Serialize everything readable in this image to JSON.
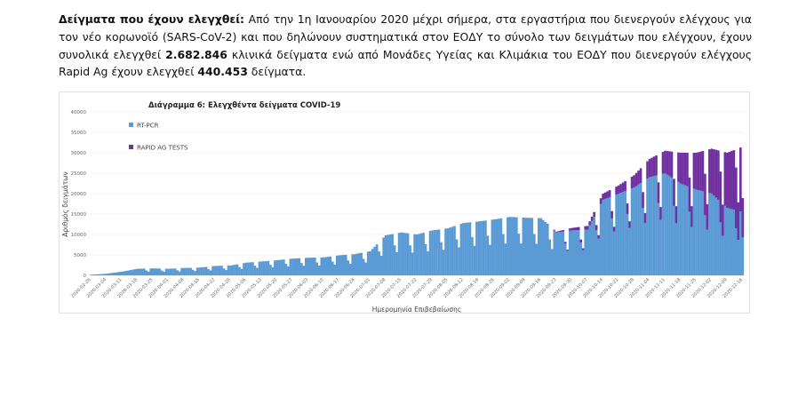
{
  "intro": {
    "heading": "Δείγματα που έχουν ελεγχθεί:",
    "text1": " Από την 1η Ιανουαρίου 2020 μέχρι σήμερα, στα εργαστήρια που διενεργούν ελέγχους για τον νέο κορωνοϊό (SARS-CoV-2) και που δηλώνουν συστηματικά στον ΕΟΔΥ το σύνολο των δειγμάτων που ελέγχουν, έχουν συνολικά ελεγχθεί ",
    "pcr_total": "2.682.846",
    "text2": " κλινικά δείγματα ενώ από Μονάδες Υγείας και Κλιμάκια του ΕΟΔΥ που διενεργούν ελέγχους Rapid Ag έχουν ελεγχθεί ",
    "rapid_total": "440.453",
    "text3": " δείγματα."
  },
  "chart_data": {
    "type": "bar",
    "stacked": true,
    "title": "Διάγραμμα 6: Ελεγχθέντα δείγματα COVID-19",
    "xlabel": "Ημερομηνία Επιβεβαίωσης",
    "ylabel": "Αριθμός δειγμάτων",
    "ylim": [
      0,
      40000
    ],
    "yticks": [
      "0",
      "5000",
      "10000",
      "15000",
      "20000",
      "25000",
      "30000",
      "35000",
      "40000"
    ],
    "x_start": "2020-02-26",
    "x_end": "2020-12-16",
    "xticks": [
      "2020-02-26",
      "2020-03-04",
      "2020-03-11",
      "2020-03-18",
      "2020-03-25",
      "2020-04-01",
      "2020-04-08",
      "2020-04-15",
      "2020-04-22",
      "2020-04-29",
      "2020-05-06",
      "2020-05-13",
      "2020-05-20",
      "2020-05-27",
      "2020-06-03",
      "2020-06-10",
      "2020-06-17",
      "2020-06-24",
      "2020-07-01",
      "2020-07-08",
      "2020-07-15",
      "2020-07-22",
      "2020-07-29",
      "2020-08-05",
      "2020-08-12",
      "2020-08-19",
      "2020-08-26",
      "2020-09-02",
      "2020-09-09",
      "2020-09-16",
      "2020-09-23",
      "2020-09-30",
      "2020-10-07",
      "2020-10-14",
      "2020-10-21",
      "2020-10-28",
      "2020-11-04",
      "2020-11-11",
      "2020-11-18",
      "2020-11-25",
      "2020-12-02",
      "2020-12-09",
      "2020-12-16"
    ],
    "legend_position": "top-left",
    "series": [
      {
        "name": "RT-PCR",
        "color": "#5b9bd5",
        "weekly_values": [
          150,
          400,
          900,
          1600,
          1700,
          1600,
          1800,
          1900,
          2300,
          2400,
          3100,
          3400,
          3700,
          4100,
          4300,
          4400,
          4900,
          5200,
          5900,
          9800,
          10500,
          10000,
          11000,
          11500,
          12800,
          13200,
          13700,
          14300,
          14100,
          14000,
          10500,
          11000,
          11200,
          18500,
          20000,
          21500,
          24000,
          25000,
          22500,
          21000,
          20000,
          16500,
          15500
        ]
      },
      {
        "name": "RAPID AG TESTS",
        "color": "#7030a0",
        "weekly_values": [
          0,
          0,
          0,
          0,
          0,
          0,
          0,
          0,
          0,
          0,
          0,
          0,
          0,
          0,
          0,
          0,
          0,
          0,
          0,
          0,
          0,
          0,
          0,
          0,
          0,
          0,
          0,
          0,
          0,
          0,
          200,
          600,
          900,
          1500,
          2000,
          3000,
          4500,
          5500,
          7500,
          9000,
          11000,
          13500,
          16000
        ]
      }
    ]
  }
}
